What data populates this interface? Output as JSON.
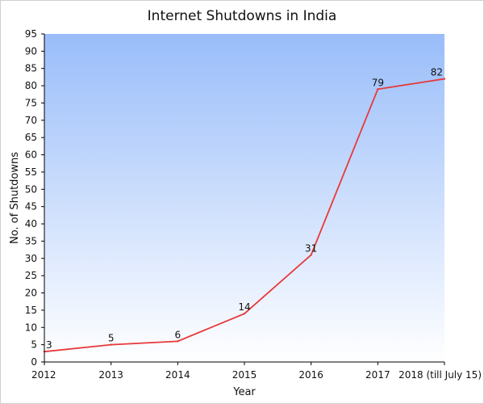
{
  "chart_data": {
    "type": "line",
    "title": "Internet Shutdowns in India",
    "xlabel": "Year",
    "ylabel": "No. of Shutdowns",
    "categories": [
      "2012",
      "2013",
      "2014",
      "2015",
      "2016",
      "2017",
      "2018 (till July 15)"
    ],
    "series": [
      {
        "values": [
          3,
          5,
          6,
          14,
          31,
          79,
          82
        ],
        "color": "#e8393a"
      }
    ],
    "data_labels": [
      "3",
      "5",
      "6",
      "14",
      "31",
      "79",
      "82"
    ],
    "ylim": [
      0,
      95
    ],
    "yticks": [
      "0",
      "5",
      "10",
      "15",
      "20",
      "25",
      "30",
      "35",
      "40",
      "45",
      "50",
      "55",
      "60",
      "65",
      "70",
      "75",
      "80",
      "85",
      "90",
      "95"
    ],
    "grid": false,
    "legend": "none",
    "colors": {
      "background_top": "#99bdfa",
      "background_bottom": "#ffffff",
      "line": "#e8393a",
      "axis": "#000000"
    }
  }
}
